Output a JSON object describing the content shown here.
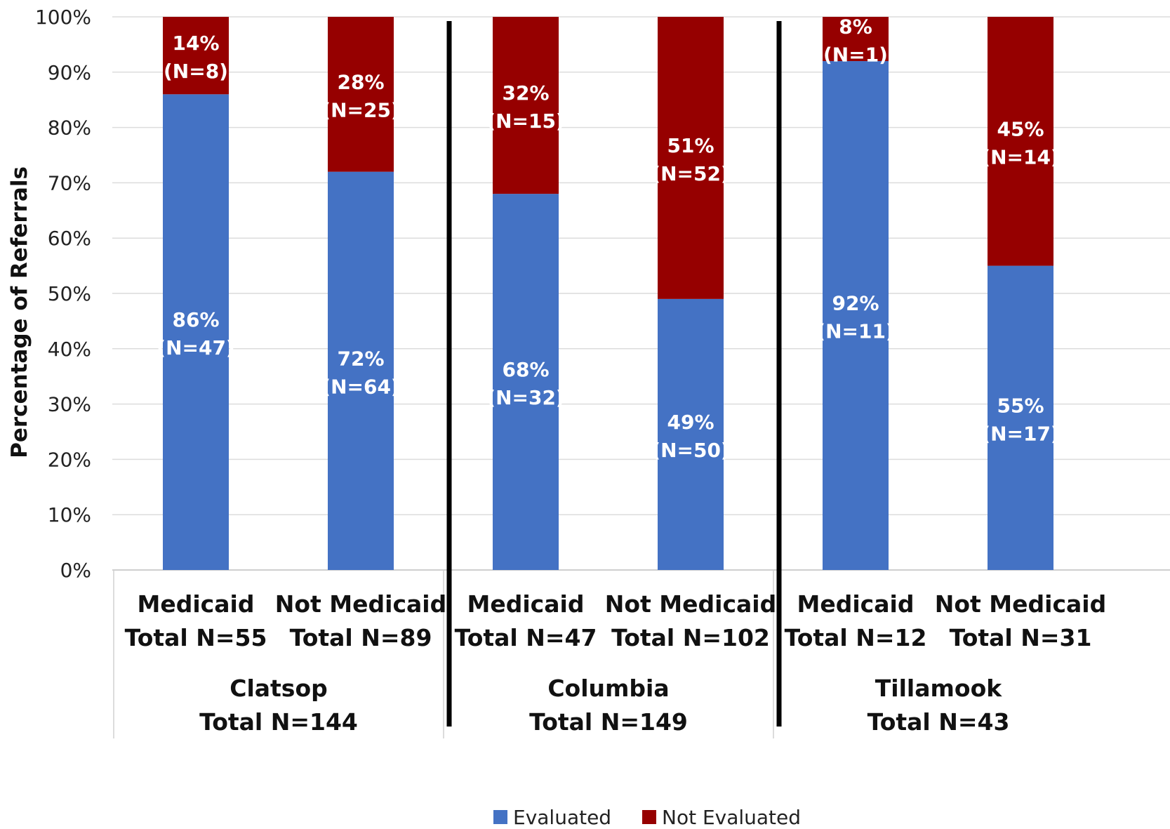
{
  "chart_data": {
    "type": "bar",
    "stacked": true,
    "ylabel": "Percentage of Referrals",
    "ylim": [
      0,
      100
    ],
    "y_ticks": [
      "0%",
      "10%",
      "20%",
      "30%",
      "40%",
      "50%",
      "60%",
      "70%",
      "80%",
      "90%",
      "100%"
    ],
    "grid": true,
    "legend_position": "bottom",
    "groups": [
      {
        "label_line1": "Clatsop",
        "label_line2": "Total N=144",
        "bars": [
          {
            "label_line1": "Medicaid",
            "label_line2": "Total N=55",
            "evaluated": 86,
            "evaluated_label": [
              "86%",
              "(N=47)"
            ],
            "not_evaluated": 14,
            "not_evaluated_label": [
              "14%",
              "(N=8)"
            ]
          },
          {
            "label_line1": "Not Medicaid",
            "label_line2": "Total N=89",
            "evaluated": 72,
            "evaluated_label": [
              "72%",
              "(N=64)"
            ],
            "not_evaluated": 28,
            "not_evaluated_label": [
              "28%",
              "(N=25)"
            ]
          }
        ]
      },
      {
        "label_line1": "Columbia",
        "label_line2": "Total N=149",
        "bars": [
          {
            "label_line1": "Medicaid",
            "label_line2": "Total N=47",
            "evaluated": 68,
            "evaluated_label": [
              "68%",
              "(N=32)"
            ],
            "not_evaluated": 32,
            "not_evaluated_label": [
              "32%",
              "(N=15)"
            ]
          },
          {
            "label_line1": "Not Medicaid",
            "label_line2": "Total N=102",
            "evaluated": 49,
            "evaluated_label": [
              "49%",
              "(N=50)"
            ],
            "not_evaluated": 51,
            "not_evaluated_label": [
              "51%",
              "(N=52)"
            ]
          }
        ]
      },
      {
        "label_line1": "Tillamook",
        "label_line2": "Total N=43",
        "bars": [
          {
            "label_line1": "Medicaid",
            "label_line2": "Total N=12",
            "evaluated": 92,
            "evaluated_label": [
              "92%",
              "(N=11)"
            ],
            "not_evaluated": 8,
            "not_evaluated_label": [
              "8%",
              "(N=1)"
            ]
          },
          {
            "label_line1": "Not Medicaid",
            "label_line2": "Total N=31",
            "evaluated": 55,
            "evaluated_label": [
              "55%",
              "(N=17)"
            ],
            "not_evaluated": 45,
            "not_evaluated_label": [
              "45%",
              "(N=14)"
            ]
          }
        ]
      }
    ],
    "series": [
      {
        "name": "Evaluated",
        "color": "#4472C4"
      },
      {
        "name": "Not Evaluated",
        "color": "#960000"
      }
    ]
  }
}
